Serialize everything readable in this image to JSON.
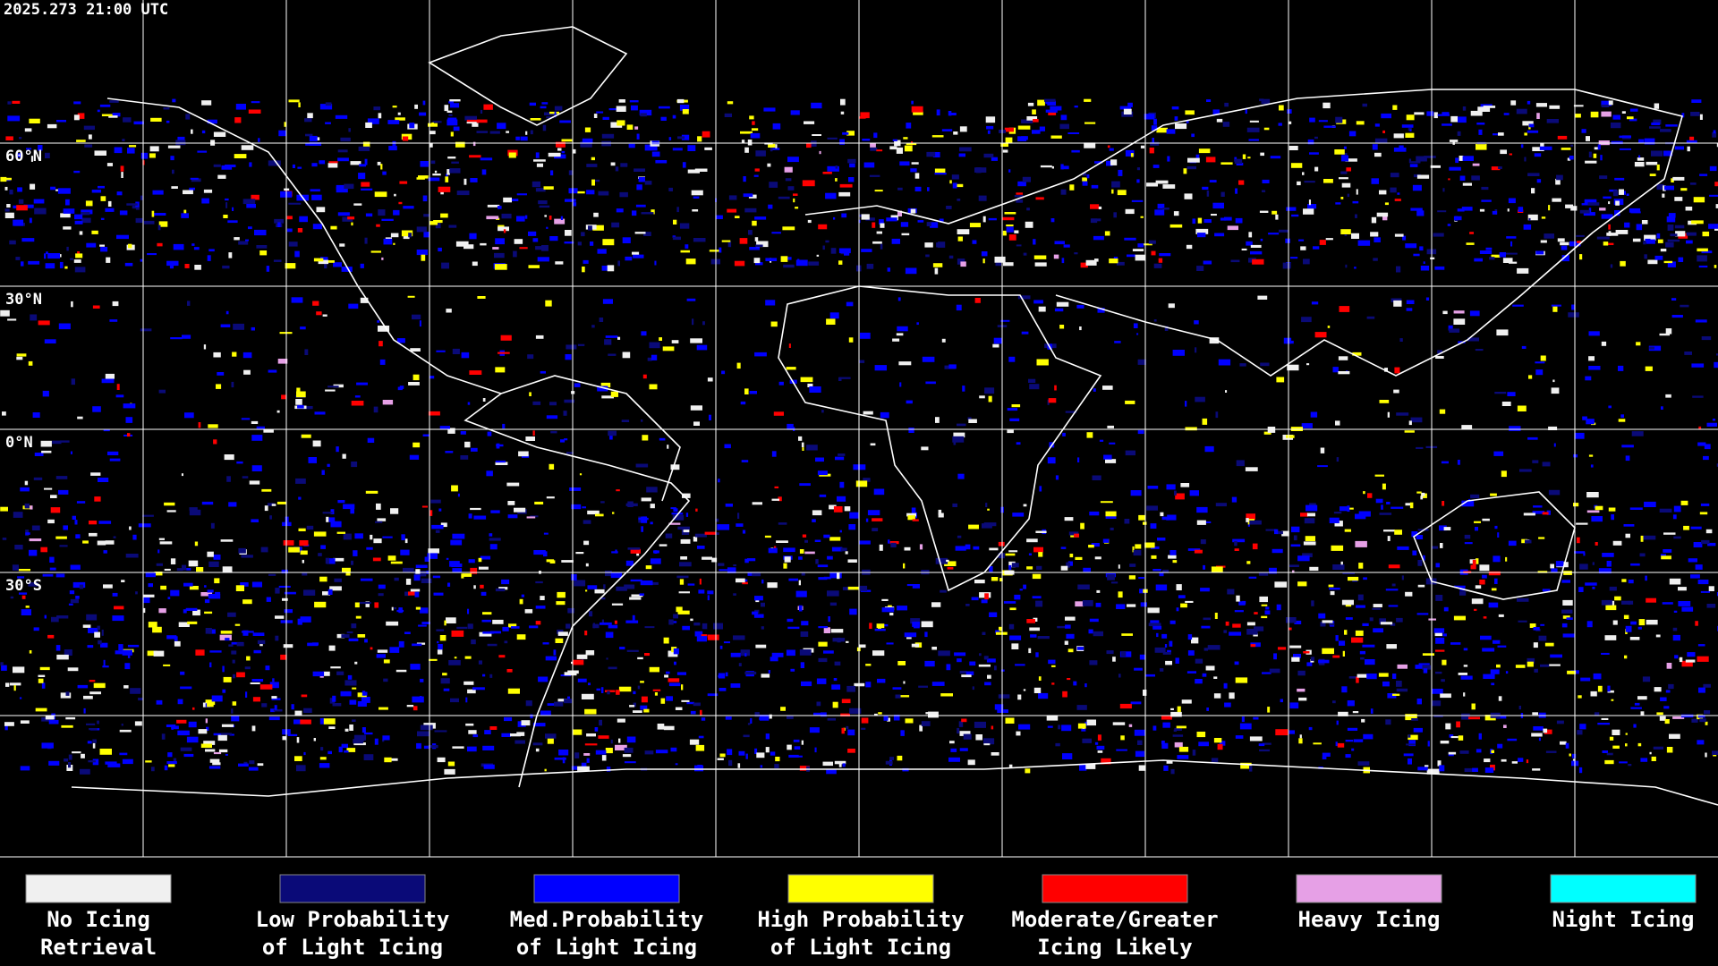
{
  "timestamp": "2025.273 21:00 UTC",
  "latitude_labels": [
    "60°N",
    "30°N",
    "0°N",
    "30°S"
  ],
  "legend": [
    {
      "color": "#f0f0f0",
      "lines": [
        "No Icing",
        "Retrieval"
      ]
    },
    {
      "color": "#0a0a78",
      "lines": [
        "Low Probability",
        "of Light Icing"
      ]
    },
    {
      "color": "#0000ff",
      "lines": [
        "Med.Probability",
        "of Light Icing"
      ]
    },
    {
      "color": "#ffff00",
      "lines": [
        "High Probability",
        "of Light Icing"
      ]
    },
    {
      "color": "#ff0000",
      "lines": [
        "Moderate/Greater",
        "Icing Likely"
      ]
    },
    {
      "color": "#e6a0e6",
      "lines": [
        "Heavy Icing"
      ]
    },
    {
      "color": "#00ffff",
      "lines": [
        "Night Icing"
      ]
    }
  ]
}
